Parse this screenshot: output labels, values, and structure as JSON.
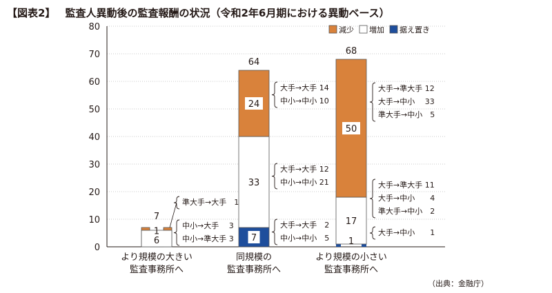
{
  "title": {
    "tag": "【図表2】",
    "text": "監査人異動後の監査報酬の状況（令和2年6月期における異動ベース）"
  },
  "source": "（出典：金融庁）",
  "colors": {
    "decrease": "#D9823B",
    "increase": "#FFFFFF",
    "unchanged": "#1E4E9C",
    "grid": "#C8C8C8",
    "axis": "#231815"
  },
  "chart_data": {
    "type": "bar",
    "stacked": true,
    "ylim": [
      0,
      80
    ],
    "yticks": [
      0,
      10,
      20,
      30,
      40,
      50,
      60,
      70,
      80
    ],
    "grid": true,
    "legend_position": "top-right",
    "categories": [
      [
        "より規模の大きい",
        "監査事務所へ"
      ],
      [
        "同規模の",
        "監査事務所へ"
      ],
      [
        "より規模の小さい",
        "監査事務所へ"
      ]
    ],
    "totals": [
      "7",
      "64",
      "68"
    ],
    "series": [
      {
        "name": "据え置き",
        "key": "unchanged",
        "values": [
          0,
          7,
          1
        ],
        "labels": [
          "",
          "7",
          "1"
        ]
      },
      {
        "name": "増加",
        "key": "increase",
        "values": [
          6,
          33,
          17
        ],
        "labels": [
          "6",
          "33",
          "17"
        ]
      },
      {
        "name": "減少",
        "key": "decrease",
        "values": [
          1,
          24,
          50
        ],
        "labels": [
          "1",
          "24",
          "50"
        ]
      }
    ],
    "legend_order": [
      "decrease",
      "increase",
      "unchanged"
    ],
    "annotations": [
      {
        "category": 0,
        "segment": "decrease",
        "lines": [
          "準大手→大手　1"
        ]
      },
      {
        "category": 0,
        "segment": "increase",
        "lines": [
          "中小→大手　 3",
          "中小→準大手 3"
        ]
      },
      {
        "category": 1,
        "segment": "decrease",
        "lines": [
          "大手→大手 14",
          "中小→中小 10"
        ]
      },
      {
        "category": 1,
        "segment": "increase",
        "lines": [
          "大手→大手 12",
          "中小→中小 21"
        ]
      },
      {
        "category": 1,
        "segment": "unchanged",
        "lines": [
          "大手→大手　2",
          "中小→中小　5"
        ]
      },
      {
        "category": 2,
        "segment": "decrease",
        "lines": [
          "大手→準大手 12",
          "大手→中小　 33",
          "準大手→中小　5"
        ]
      },
      {
        "category": 2,
        "segment": "increase",
        "lines": [
          "大手→準大手 11",
          "大手→中小　　4",
          "準大手→中小　2"
        ]
      },
      {
        "category": 2,
        "segment": "unchanged",
        "lines": [
          "大手→中小　　1"
        ]
      }
    ]
  }
}
